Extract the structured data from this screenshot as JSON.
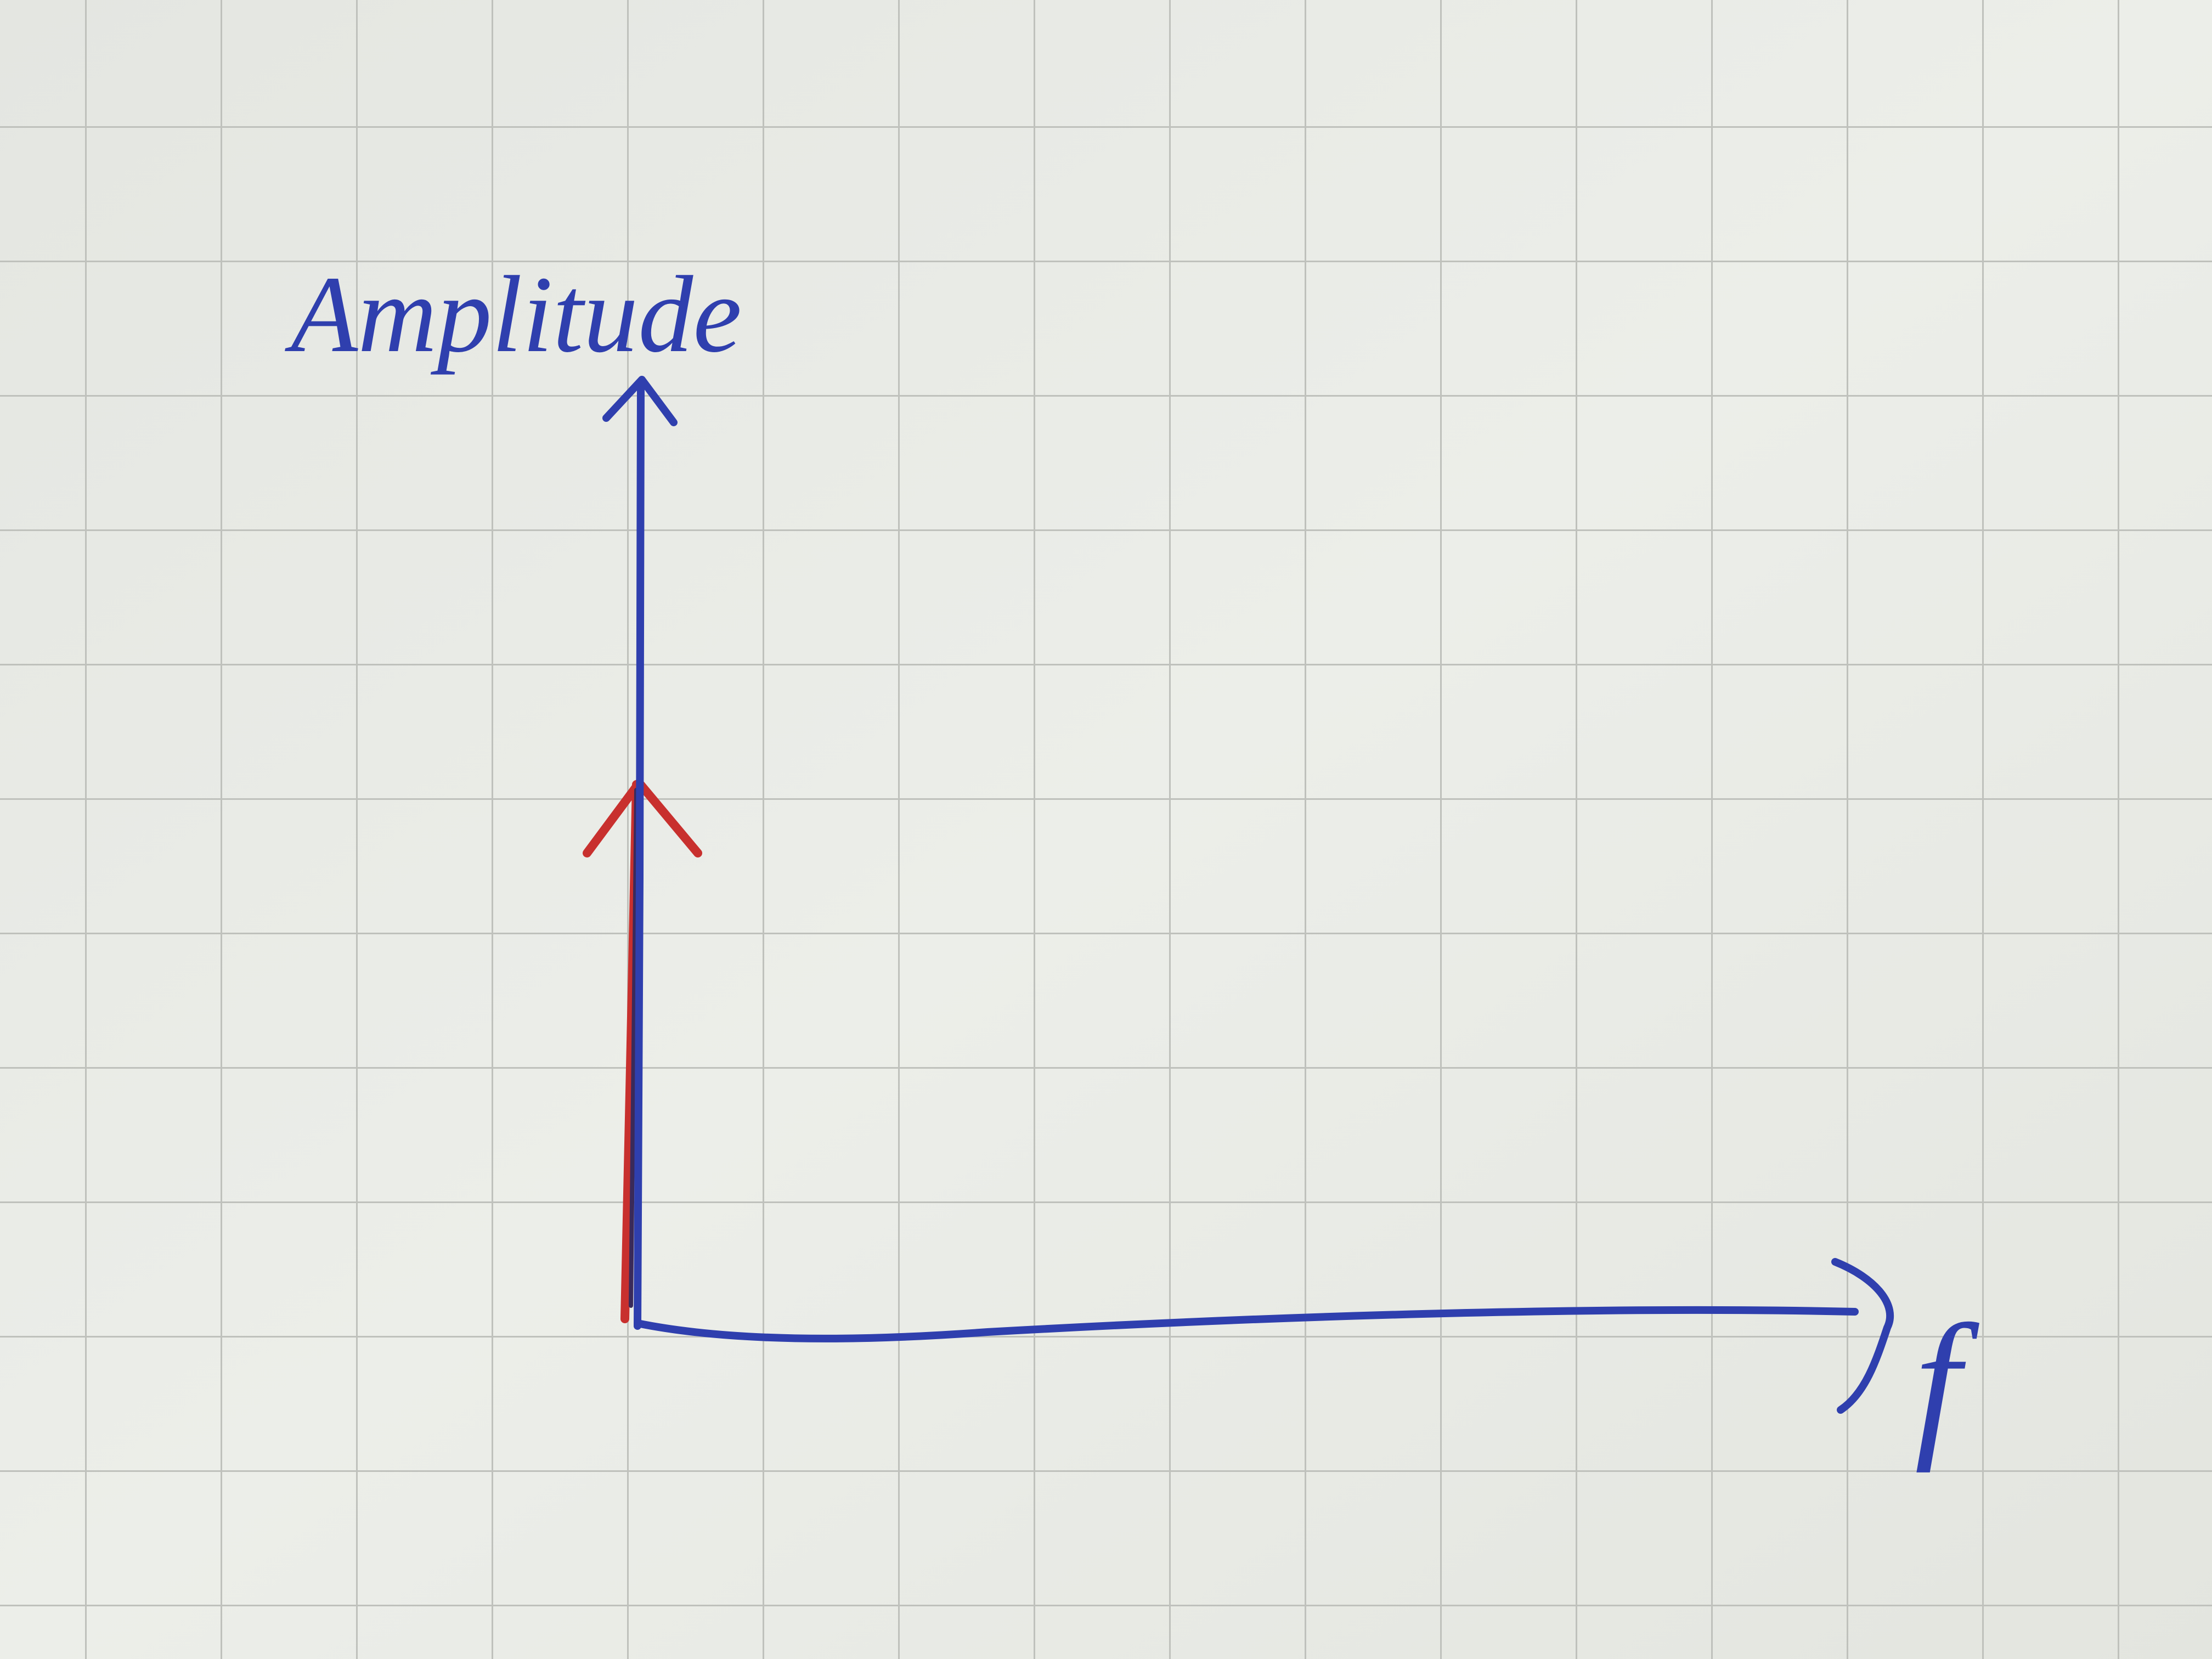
{
  "labels": {
    "y_axis": "Amplitude",
    "x_axis": "f"
  }
}
